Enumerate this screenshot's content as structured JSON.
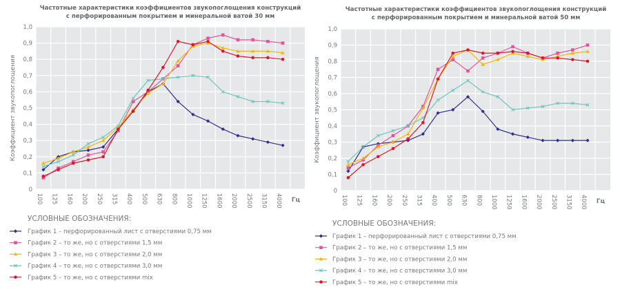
{
  "colors": {
    "plot_bg": "#e6e7e8",
    "grid": "#ffffff",
    "series": [
      "#2e2e8c",
      "#e0559a",
      "#f2b705",
      "#6cc4bc",
      "#d7192b"
    ]
  },
  "legend": {
    "heading": "УСЛОВНЫЕ ОБОЗНАЧЕНИЯ:",
    "items": [
      "График 1 – перфорированный лист с отверстиями 0,75 мм",
      "График 2 – то же, но с отверстиями 1,5 мм",
      "График 3 – то же, но с отверстиями 2,0 мм",
      "График 4 – то же, но с отверстиями 3,0 мм",
      "График 5 – то же, но с отверстиями mix"
    ],
    "markers": [
      "diamond",
      "square",
      "triangle",
      "x",
      "circle"
    ]
  },
  "chart_data": [
    {
      "type": "line",
      "title": [
        "Частотные характеристики коэффициентов звукопоглощения конструкций",
        "с перфорированным покрытием и минеральной ватой 30 мм"
      ],
      "xlabel": "Гц",
      "ylabel": "Коэффициент звукопоглощения",
      "categories": [
        "100",
        "125",
        "160",
        "200",
        "250",
        "315",
        "400",
        "500",
        "630",
        "800",
        "1000",
        "1250",
        "1600",
        "2000",
        "2500",
        "3150",
        "4000"
      ],
      "yticks": [
        "0",
        "0,1",
        "0,2",
        "0,3",
        "0,4",
        "0,5",
        "0,6",
        "0,7",
        "0,8",
        "0,9",
        "1,0"
      ],
      "ylim": [
        0,
        1
      ],
      "grid": true,
      "series": [
        {
          "name": "График 1",
          "values": [
            0.12,
            0.2,
            0.23,
            0.24,
            0.26,
            0.37,
            0.48,
            0.6,
            0.65,
            0.54,
            0.46,
            0.42,
            0.37,
            0.33,
            0.31,
            0.29,
            0.27
          ]
        },
        {
          "name": "График 2",
          "values": [
            0.07,
            0.13,
            0.17,
            0.21,
            0.23,
            0.36,
            0.54,
            0.6,
            0.68,
            0.76,
            0.89,
            0.93,
            0.95,
            0.92,
            0.92,
            0.91,
            0.9
          ]
        },
        {
          "name": "График 3",
          "values": [
            0.16,
            0.19,
            0.23,
            0.26,
            0.3,
            0.38,
            0.49,
            0.59,
            0.65,
            0.79,
            0.88,
            0.9,
            0.87,
            0.85,
            0.85,
            0.85,
            0.84
          ]
        },
        {
          "name": "График 4",
          "values": [
            0.14,
            0.17,
            0.21,
            0.28,
            0.32,
            0.39,
            0.56,
            0.67,
            0.68,
            0.69,
            0.7,
            0.69,
            0.6,
            0.57,
            0.54,
            0.54,
            0.53
          ]
        },
        {
          "name": "График 5",
          "values": [
            0.08,
            0.12,
            0.16,
            0.18,
            0.2,
            0.37,
            0.48,
            0.61,
            0.75,
            0.91,
            0.89,
            0.91,
            0.85,
            0.82,
            0.81,
            0.81,
            0.8
          ]
        }
      ]
    },
    {
      "type": "line",
      "title": [
        "Частотные характеристики коэффициентов звукопоглощения конструкций",
        "с перфорированным покрытием и минеральной ватой 50 мм"
      ],
      "xlabel": "Гц",
      "ylabel": "Коэффициент звукопоглощения",
      "categories": [
        "100",
        "125",
        "160",
        "200",
        "250",
        "315",
        "400",
        "500",
        "630",
        "800",
        "1000",
        "1250",
        "1600",
        "2000",
        "2500",
        "3150",
        "4000"
      ],
      "yticks": [
        "0",
        "0,1",
        "0,2",
        "0,3",
        "0,4",
        "0,5",
        "0,6",
        "0,7",
        "0,8",
        "0,9",
        "1,0"
      ],
      "ylim": [
        0,
        1
      ],
      "grid": true,
      "series": [
        {
          "name": "График 1",
          "values": [
            0.12,
            0.27,
            0.29,
            0.3,
            0.31,
            0.35,
            0.48,
            0.5,
            0.58,
            0.49,
            0.38,
            0.35,
            0.33,
            0.31,
            0.31,
            0.31,
            0.31
          ]
        },
        {
          "name": "График 2",
          "values": [
            0.14,
            0.19,
            0.28,
            0.34,
            0.4,
            0.52,
            0.75,
            0.81,
            0.74,
            0.82,
            0.85,
            0.89,
            0.85,
            0.82,
            0.85,
            0.87,
            0.9
          ]
        },
        {
          "name": "График 3",
          "values": [
            0.16,
            0.2,
            0.27,
            0.3,
            0.35,
            0.51,
            0.69,
            0.83,
            0.87,
            0.78,
            0.81,
            0.85,
            0.83,
            0.81,
            0.83,
            0.85,
            0.86
          ]
        },
        {
          "name": "График 4",
          "values": [
            0.18,
            0.27,
            0.34,
            0.37,
            0.4,
            0.45,
            0.56,
            0.62,
            0.68,
            0.61,
            0.58,
            0.5,
            0.51,
            0.52,
            0.54,
            0.54,
            0.53
          ]
        },
        {
          "name": "График 5",
          "values": [
            0.08,
            0.16,
            0.21,
            0.26,
            0.32,
            0.42,
            0.69,
            0.85,
            0.87,
            0.85,
            0.85,
            0.86,
            0.85,
            0.82,
            0.82,
            0.81,
            0.8
          ]
        }
      ]
    }
  ]
}
